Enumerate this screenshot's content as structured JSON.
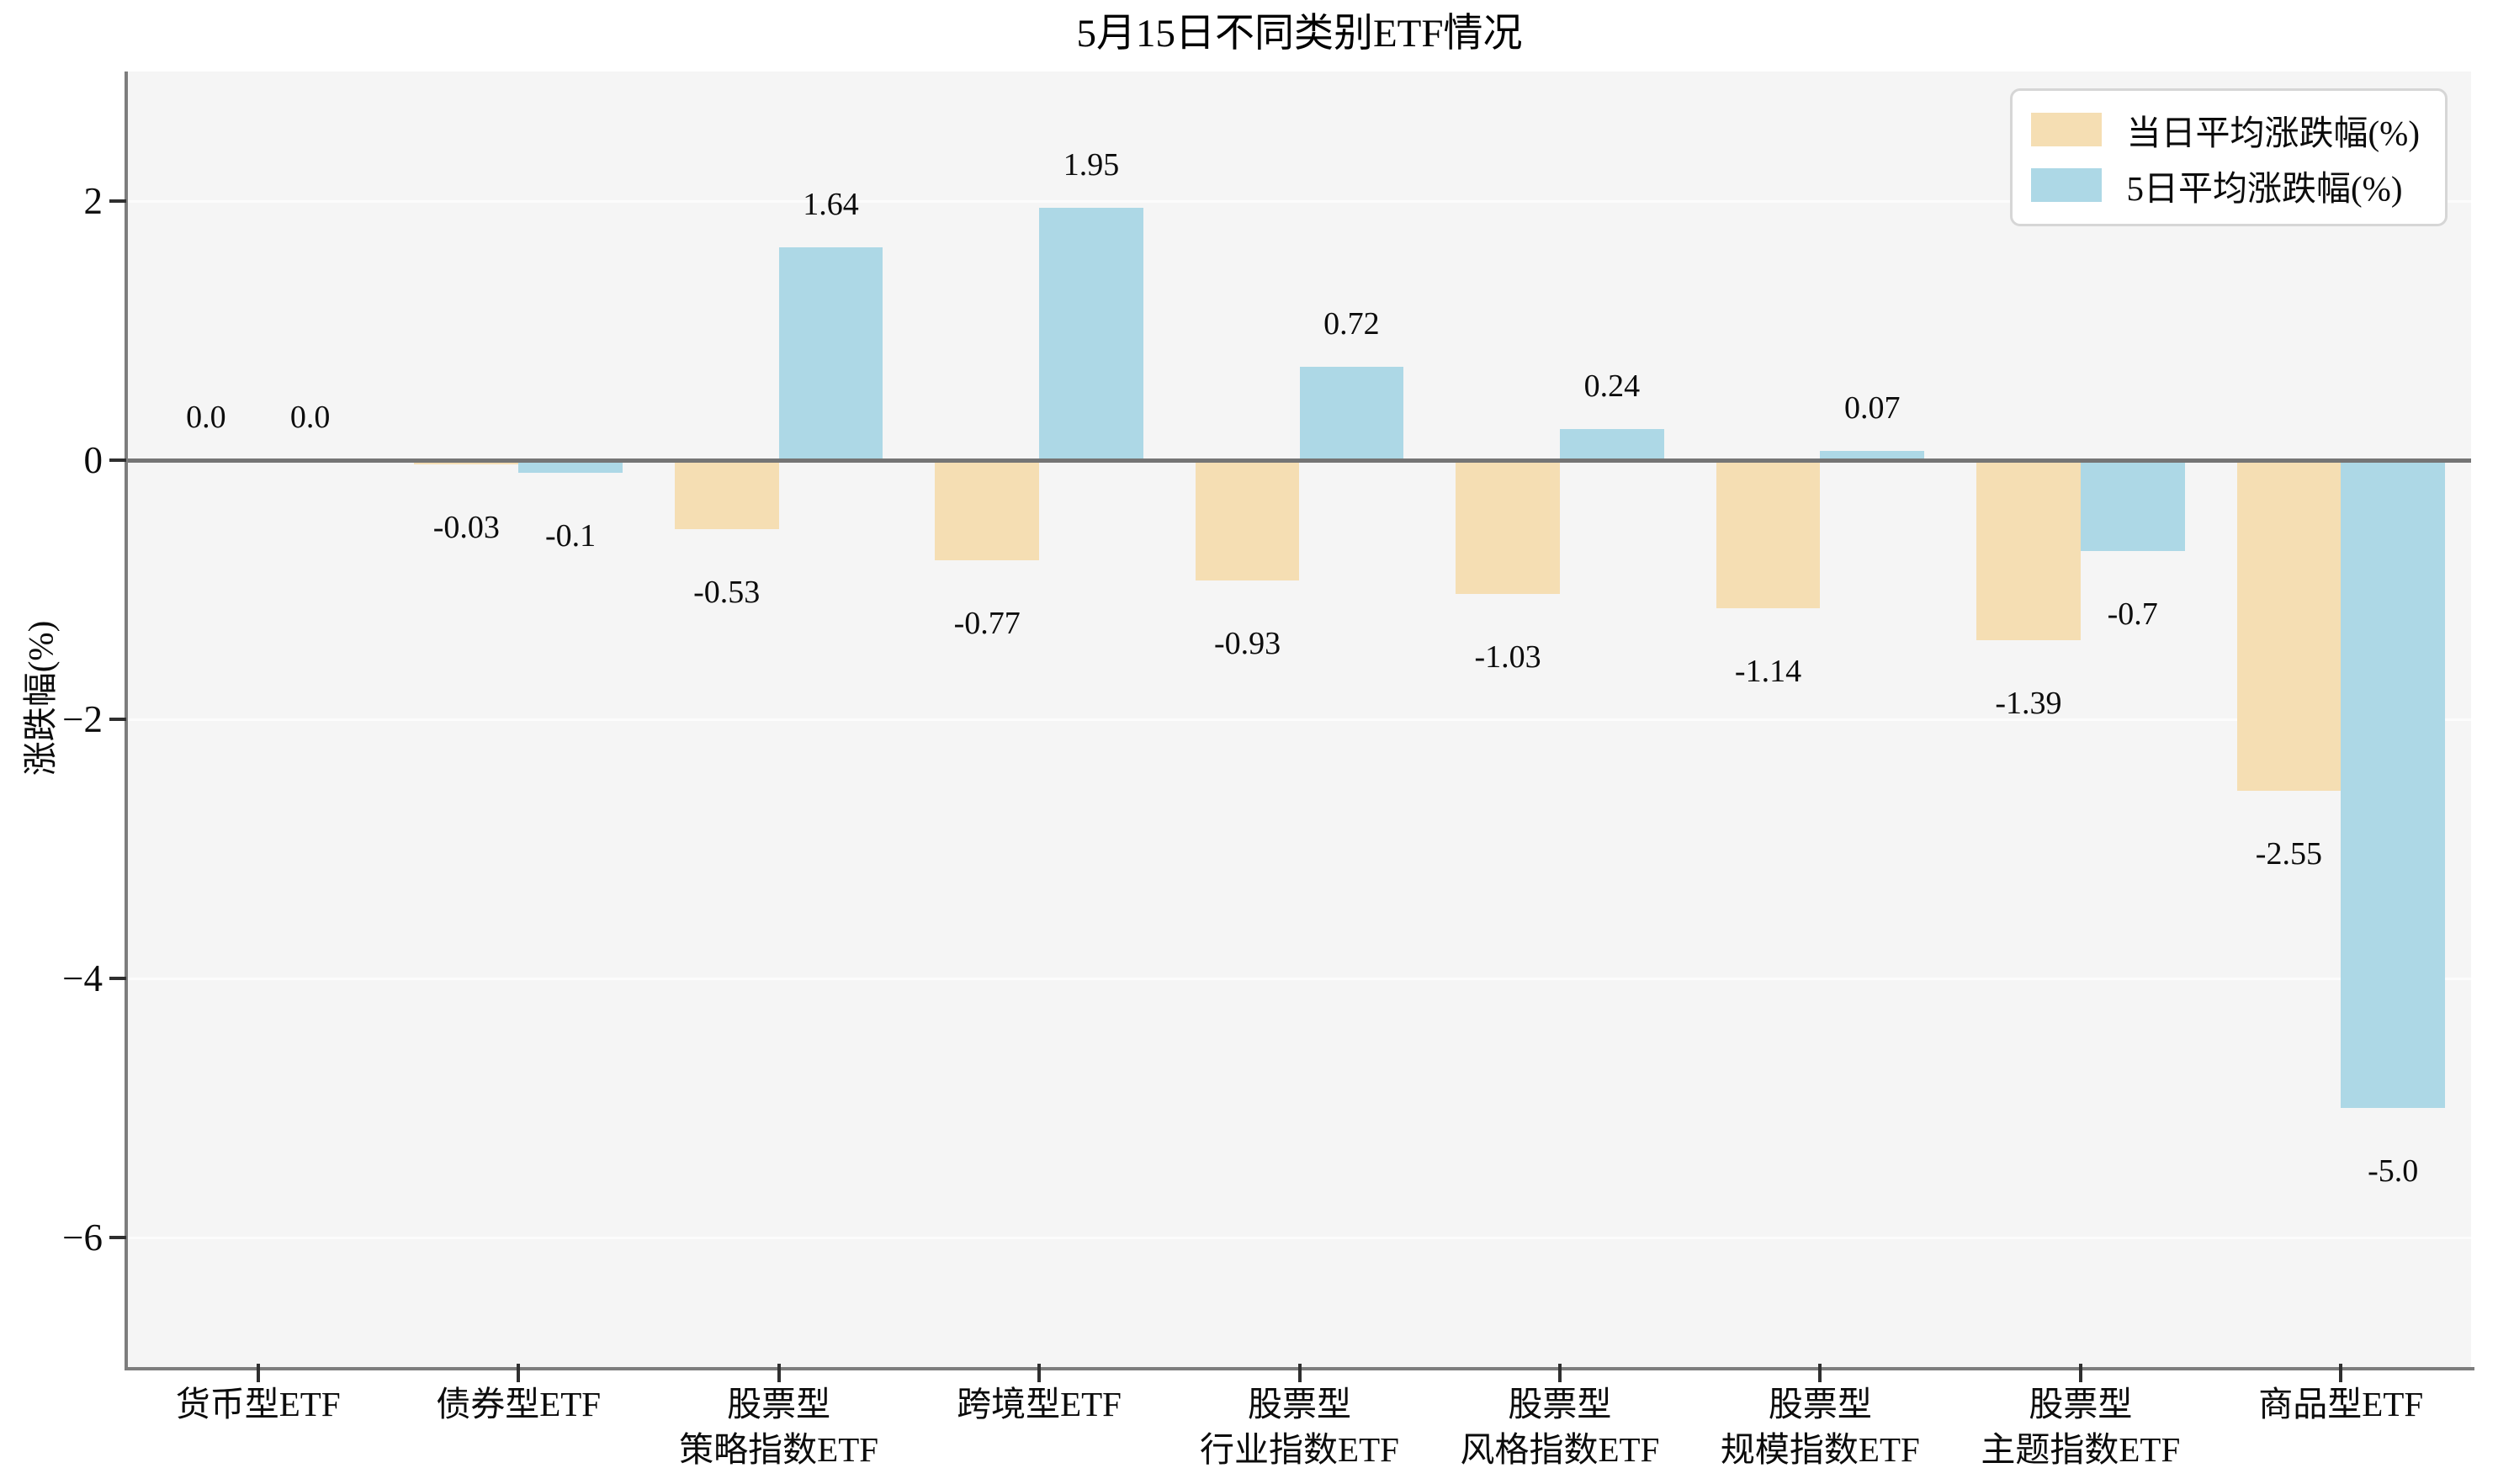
{
  "chart_data": {
    "type": "bar",
    "title": "5月15日不同类别ETF情况",
    "xlabel": "",
    "ylabel": "涨跌幅(%)",
    "ylim": [
      -7,
      3
    ],
    "yticks": [
      2,
      0,
      -2,
      -4,
      -6
    ],
    "ytick_labels": [
      "2",
      "0",
      "−2",
      "−4",
      "−6"
    ],
    "grid": true,
    "legend_position": "upper right",
    "categories": [
      "货币型ETF",
      "债券型ETF",
      "股票型\n策略指数ETF",
      "跨境型ETF",
      "股票型\n行业指数ETF",
      "股票型\n风格指数ETF",
      "股票型\n规模指数ETF",
      "股票型\n主题指数ETF",
      "商品型ETF"
    ],
    "series": [
      {
        "name": "当日平均涨跌幅(%)",
        "color": "#F5DEB3",
        "values": [
          0.0,
          -0.03,
          -0.53,
          -0.77,
          -0.93,
          -1.03,
          -1.14,
          -1.39,
          -2.55
        ],
        "labels": [
          "0.0",
          "-0.03",
          "-0.53",
          "-0.77",
          "-0.93",
          "-1.03",
          "-1.14",
          "-1.39",
          "-2.55"
        ]
      },
      {
        "name": "5日平均涨跌幅(%)",
        "color": "#ADD8E6",
        "values": [
          0.0,
          -0.1,
          1.64,
          1.95,
          0.72,
          0.24,
          0.07,
          -0.7,
          -5.0
        ],
        "labels": [
          "0.0",
          "-0.1",
          "1.64",
          "1.95",
          "0.72",
          "0.24",
          "0.07",
          "-0.7",
          "-5.0"
        ]
      }
    ],
    "bar_width_fraction": 0.4,
    "colors": {
      "plot_background": "#f5f5f5",
      "figure_background": "#ffffff",
      "zero_line": "#757575",
      "spine": "#7d7d7d",
      "gridline": "#fcfcfc",
      "text": "#0c0c0c"
    }
  }
}
